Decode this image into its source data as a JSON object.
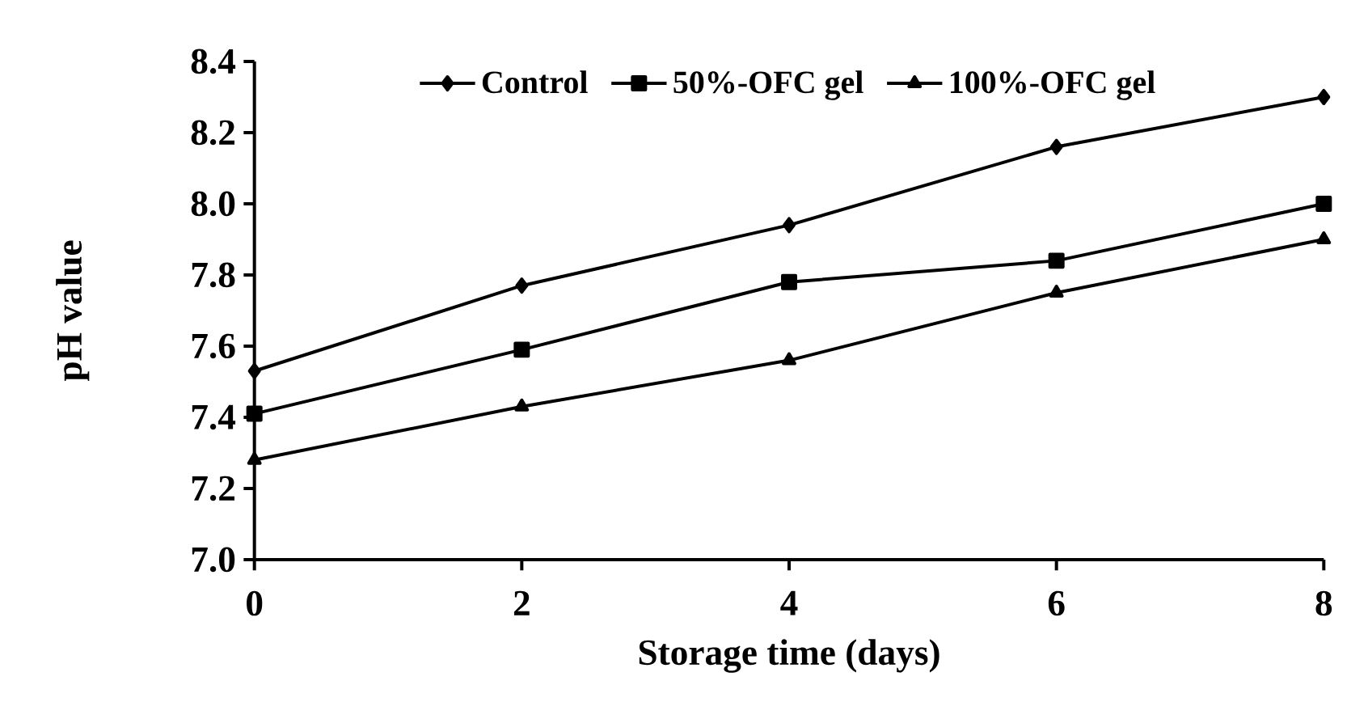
{
  "chart_data": {
    "type": "line",
    "xlabel": "Storage time (days)",
    "ylabel": "pH value",
    "x": [
      0,
      2,
      4,
      6,
      8
    ],
    "xlim": [
      0,
      8
    ],
    "xticks": [
      0,
      2,
      4,
      6,
      8
    ],
    "ylim": [
      7.0,
      8.4
    ],
    "yticks": [
      {
        "value": 7.0,
        "label": "7.0"
      },
      {
        "value": 7.2,
        "label": "7.2"
      },
      {
        "value": 7.4,
        "label": "7.4"
      },
      {
        "value": 7.6,
        "label": "7.6"
      },
      {
        "value": 7.8,
        "label": "7.8"
      },
      {
        "value": 8.0,
        "label": "8.0"
      },
      {
        "value": 8.2,
        "label": "8.2"
      },
      {
        "value": 8.4,
        "label": "8.4"
      }
    ],
    "grid": false,
    "legend": "top",
    "line_style": "solid",
    "series": [
      {
        "name": "Control",
        "color": "#000000",
        "marker": "diamond",
        "values": [
          7.53,
          7.77,
          7.94,
          8.16,
          8.3
        ]
      },
      {
        "name": "50%-OFC gel",
        "color": "#000000",
        "marker": "square",
        "values": [
          7.41,
          7.59,
          7.78,
          7.84,
          8.0
        ]
      },
      {
        "name": "100%-OFC gel",
        "color": "#000000",
        "marker": "triangle",
        "values": [
          7.28,
          7.43,
          7.56,
          7.75,
          7.9
        ]
      }
    ]
  }
}
